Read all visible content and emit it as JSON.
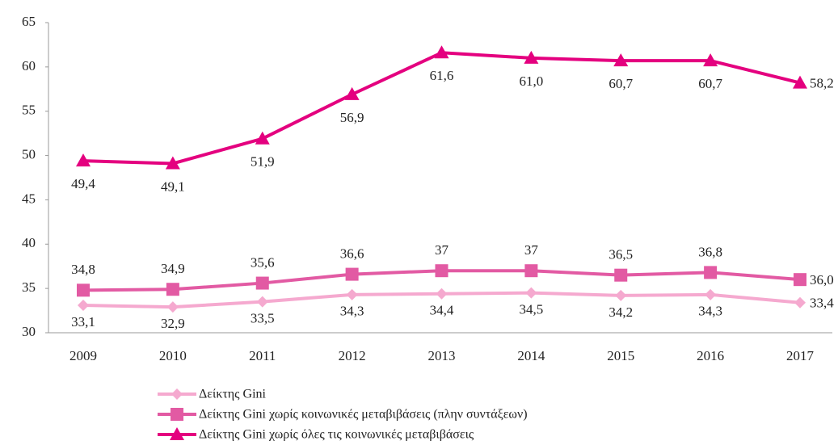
{
  "chart_data": {
    "type": "line",
    "categories": [
      "2009",
      "2010",
      "2011",
      "2012",
      "2013",
      "2014",
      "2015",
      "2016",
      "2017"
    ],
    "ylim": [
      30,
      65
    ],
    "yticks": [
      30,
      35,
      40,
      45,
      50,
      55,
      60,
      65
    ],
    "grid": false,
    "legend": "bottom",
    "series": [
      {
        "name": "Δείκτης Gini",
        "color": "#f5a9cf",
        "marker": "diamond",
        "label_position": "below",
        "values": [
          33.1,
          32.9,
          33.5,
          34.3,
          34.4,
          34.5,
          34.2,
          34.3,
          33.4
        ],
        "value_labels": [
          "33,1",
          "32,9",
          "33,5",
          "34,3",
          "34,4",
          "34,5",
          "34,2",
          "34,3",
          "33,4"
        ]
      },
      {
        "name": "Δείκτης Gini χωρίς κοινωνικές μεταβιβάσεις (πλην συντάξεων)",
        "color": "#e25aa3",
        "marker": "square",
        "label_position": "above",
        "values": [
          34.8,
          34.9,
          35.6,
          36.6,
          37,
          37,
          36.5,
          36.8,
          36.0
        ],
        "value_labels": [
          "34,8",
          "34,9",
          "35,6",
          "36,6",
          "37",
          "37",
          "36,5",
          "36,8",
          "36,0"
        ]
      },
      {
        "name": "Δείκτης Gini χωρίς όλες τις κοινωνικές μεταβιβάσεις",
        "color": "#e4007f",
        "marker": "triangle",
        "label_position": "below",
        "values": [
          49.4,
          49.1,
          51.9,
          56.9,
          61.6,
          61.0,
          60.7,
          60.7,
          58.2
        ],
        "value_labels": [
          "49,4",
          "49,1",
          "51,9",
          "56,9",
          "61,6",
          "61,0",
          "60,7",
          "60,7",
          "58,2"
        ]
      }
    ]
  }
}
